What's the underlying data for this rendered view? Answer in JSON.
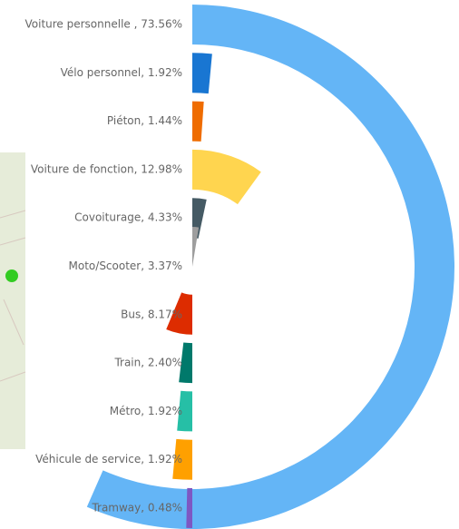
{
  "chart_data": {
    "type": "radial-bar",
    "labels": [
      "Voiture personnelle , 73.56%",
      "Vélo personnel, 1.92%",
      "Piéton, 1.44%",
      "Voiture de fonction, 12.98%",
      "Covoiturage, 4.33%",
      "Moto/Scooter, 3.37%",
      "Bus, 8.17%",
      "Train, 2.40%",
      "Métro, 1.92%",
      "Véhicule de service, 1.92%",
      "Tramway, 0.48%"
    ],
    "values": [
      73.56,
      1.92,
      1.44,
      12.98,
      4.33,
      3.37,
      8.17,
      2.4,
      1.92,
      1.92,
      0.48
    ],
    "colors": [
      "#64b5f6",
      "#1976d2",
      "#ef6c00",
      "#ffd54f",
      "#455a64",
      "#9e9e9e",
      "#dd2c00",
      "#00796b",
      "#26bfa6",
      "#ffa000",
      "#7e57c2"
    ],
    "xlim": [
      0,
      130
    ]
  }
}
